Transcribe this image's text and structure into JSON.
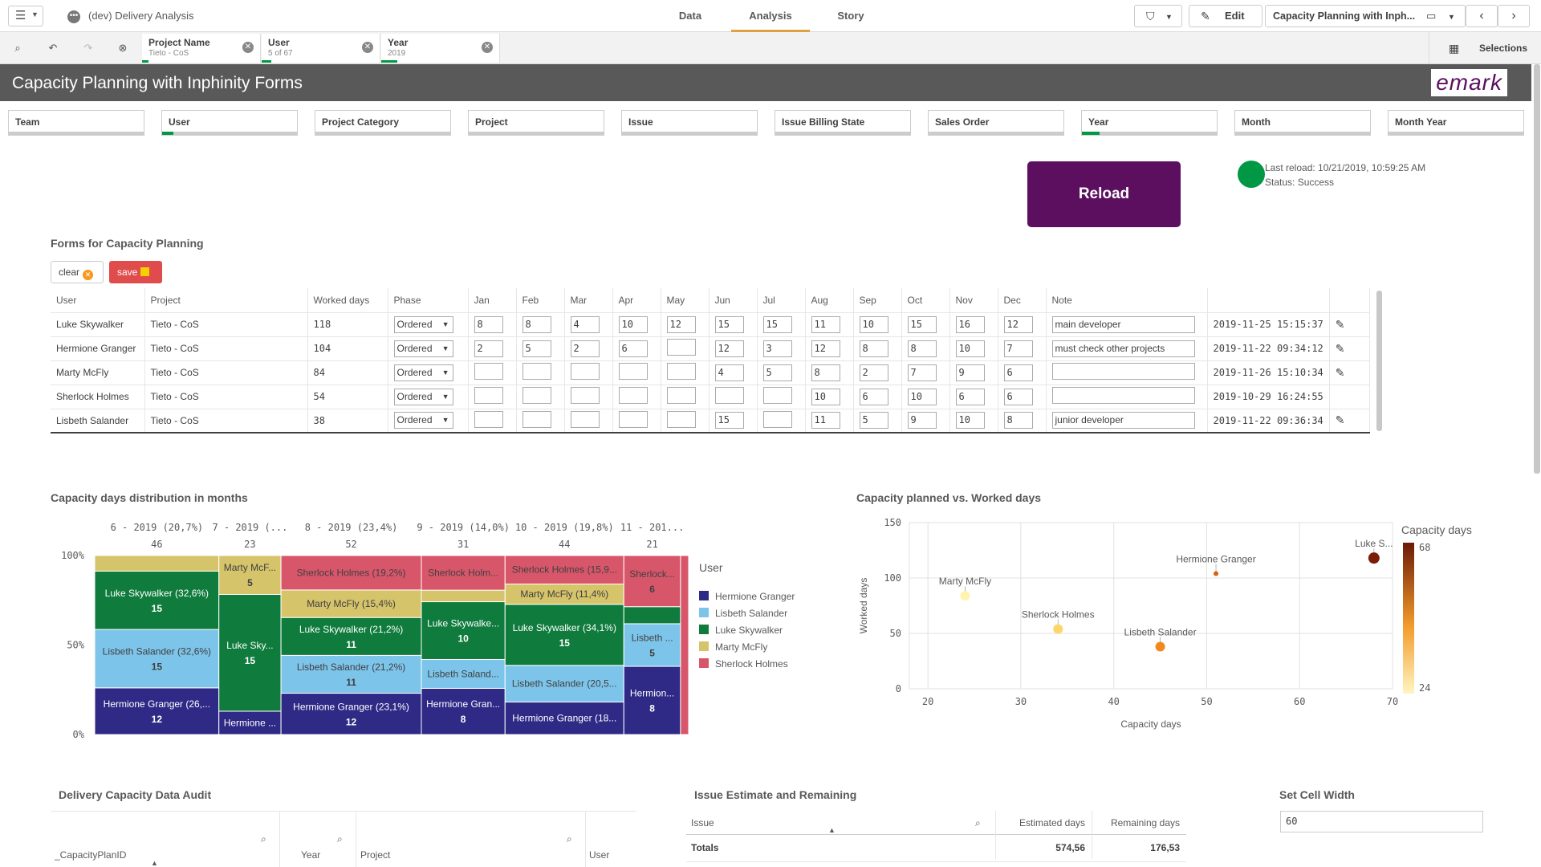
{
  "app": {
    "title": "(dev) Delivery Analysis",
    "icon": "app-icon"
  },
  "nav": {
    "tabs": [
      "Data",
      "Analysis",
      "Story"
    ],
    "active": "Analysis"
  },
  "toolbar": {
    "edit_label": "Edit",
    "sheet_name": "Capacity Planning with Inph...",
    "selections_label": "Selections"
  },
  "selections": [
    {
      "title": "Project Name",
      "value": "Tieto - CoS"
    },
    {
      "title": "User",
      "value": "5 of 67"
    },
    {
      "title": "Year",
      "value": "2019"
    }
  ],
  "sheet": {
    "title": "Capacity Planning with Inphinity Forms",
    "logo": "emark"
  },
  "filters": [
    "Team",
    "User",
    "Project Category",
    "Project",
    "Issue",
    "Issue Billing State",
    "Sales Order",
    "Year",
    "Month",
    "Month Year"
  ],
  "reload": {
    "label": "Reload",
    "last_reload": "Last reload: 10/21/2019, 10:59:25 AM",
    "status": "Status: Success",
    "status_color": "#009845"
  },
  "forms": {
    "title": "Forms for Capacity Planning",
    "clear_label": "clear",
    "save_label": "save",
    "columns": [
      "User",
      "Project",
      "Worked days",
      "Phase",
      "Jan",
      "Feb",
      "Mar",
      "Apr",
      "May",
      "Jun",
      "Jul",
      "Aug",
      "Sep",
      "Oct",
      "Nov",
      "Dec",
      "Note",
      ""
    ],
    "rows": [
      {
        "user": "Luke Skywalker",
        "project": "Tieto - CoS",
        "worked": "118",
        "phase": "Ordered",
        "months": [
          "8",
          "8",
          "4",
          "10",
          "12",
          "15",
          "15",
          "11",
          "10",
          "15",
          "16",
          "12"
        ],
        "note": "main developer",
        "ts": "2019-11-25 15:15:37",
        "edit": true
      },
      {
        "user": "Hermione Granger",
        "project": "Tieto - CoS",
        "worked": "104",
        "phase": "Ordered",
        "months": [
          "2",
          "5",
          "2",
          "6",
          "",
          "12",
          "3",
          "12",
          "8",
          "8",
          "10",
          "7"
        ],
        "note": "must check other projects",
        "ts": "2019-11-22 09:34:12",
        "edit": true
      },
      {
        "user": "Marty McFly",
        "project": "Tieto - CoS",
        "worked": "84",
        "phase": "Ordered",
        "months": [
          "",
          "",
          "",
          "",
          "",
          "4",
          "5",
          "8",
          "2",
          "7",
          "9",
          "6"
        ],
        "note": "",
        "ts": "2019-11-26 15:10:34",
        "edit": true
      },
      {
        "user": "Sherlock Holmes",
        "project": "Tieto - CoS",
        "worked": "54",
        "phase": "Ordered",
        "months": [
          "",
          "",
          "",
          "",
          "",
          "",
          "",
          "10",
          "6",
          "10",
          "6",
          "6"
        ],
        "note": "",
        "ts": "2019-10-29 16:24:55",
        "edit": false
      },
      {
        "user": "Lisbeth Salander",
        "project": "Tieto - CoS",
        "worked": "38",
        "phase": "Ordered",
        "months": [
          "",
          "",
          "",
          "",
          "",
          "15",
          "",
          "11",
          "5",
          "9",
          "10",
          "8"
        ],
        "note": "junior developer",
        "ts": "2019-11-22 09:36:34",
        "edit": true
      }
    ]
  },
  "chart_data": [
    {
      "type": "bar",
      "title": "Capacity days distribution in months",
      "legend_title": "User",
      "legend_placement": "right",
      "y_ticks": [
        "100%",
        "50%",
        "0%"
      ],
      "series_colors": {
        "Hermione Granger": "#2e2a86",
        "Lisbeth Salander": "#7dc4ea",
        "Luke Skywalker": "#0f7b3c",
        "Marty McFly": "#d6c46b",
        "Sherlock Holmes": "#d8566a"
      },
      "legend": [
        "Hermione Granger",
        "Lisbeth Salander",
        "Luke Skywalker",
        "Marty McFly",
        "Sherlock Holmes"
      ],
      "columns": [
        {
          "label": "6 - 2019 (20,7%)",
          "total": "46",
          "total_value": 46,
          "segments": [
            {
              "name": "Hermione Granger",
              "label": "Hermione Granger (26,...",
              "value": "12",
              "v": 12
            },
            {
              "name": "Lisbeth Salander",
              "label": "Lisbeth Salander (32,6%)",
              "value": "15",
              "v": 15
            },
            {
              "name": "Luke Skywalker",
              "label": "Luke Skywalker (32,6%)",
              "value": "15",
              "v": 15
            },
            {
              "name": "Marty McFly",
              "label": "",
              "value": "",
              "v": 4
            }
          ]
        },
        {
          "label": "7 - 2019 (...",
          "total": "23",
          "total_value": 23,
          "segments": [
            {
              "name": "Hermione Granger",
              "label": "Hermione ...",
              "value": "",
              "v": 3
            },
            {
              "name": "Luke Skywalker",
              "label": "Luke Sky...",
              "value": "15",
              "v": 15
            },
            {
              "name": "Marty McFly",
              "label": "Marty McF...",
              "value": "5",
              "v": 5
            }
          ]
        },
        {
          "label": "8 - 2019 (23,4%)",
          "total": "52",
          "total_value": 52,
          "segments": [
            {
              "name": "Hermione Granger",
              "label": "Hermione Granger (23,1%)",
              "value": "12",
              "v": 12
            },
            {
              "name": "Lisbeth Salander",
              "label": "Lisbeth Salander (21,2%)",
              "value": "11",
              "v": 11
            },
            {
              "name": "Luke Skywalker",
              "label": "Luke Skywalker (21,2%)",
              "value": "11",
              "v": 11
            },
            {
              "name": "Marty McFly",
              "label": "Marty McFly (15,4%)",
              "value": "",
              "v": 8
            },
            {
              "name": "Sherlock Holmes",
              "label": "Sherlock Holmes (19,2%)",
              "value": "",
              "v": 10
            }
          ]
        },
        {
          "label": "9 - 2019 (14,0%)",
          "total": "31",
          "total_value": 31,
          "segments": [
            {
              "name": "Hermione Granger",
              "label": "Hermione Gran...",
              "value": "8",
              "v": 8
            },
            {
              "name": "Lisbeth Salander",
              "label": "Lisbeth Saland...",
              "value": "",
              "v": 5
            },
            {
              "name": "Luke Skywalker",
              "label": "Luke Skywalke...",
              "value": "10",
              "v": 10
            },
            {
              "name": "Marty McFly",
              "label": "",
              "value": "",
              "v": 2
            },
            {
              "name": "Sherlock Holmes",
              "label": "Sherlock Holm...",
              "value": "",
              "v": 6
            }
          ]
        },
        {
          "label": "10 - 2019 (19,8%)",
          "total": "44",
          "total_value": 44,
          "segments": [
            {
              "name": "Hermione Granger",
              "label": "Hermione Granger (18...",
              "value": "",
              "v": 8
            },
            {
              "name": "Lisbeth Salander",
              "label": "Lisbeth Salander (20,5...",
              "value": "",
              "v": 9
            },
            {
              "name": "Luke Skywalker",
              "label": "Luke Skywalker (34,1%)",
              "value": "15",
              "v": 15
            },
            {
              "name": "Marty McFly",
              "label": "Marty McFly (11,4%)",
              "value": "",
              "v": 5
            },
            {
              "name": "Sherlock Holmes",
              "label": "Sherlock Holmes (15,9...",
              "value": "",
              "v": 7
            }
          ]
        },
        {
          "label": "11 - 201...",
          "total": "21",
          "total_value": 21,
          "segments": [
            {
              "name": "Hermione Granger",
              "label": "Hermion...",
              "value": "8",
              "v": 8
            },
            {
              "name": "Lisbeth Salander",
              "label": "Lisbeth ...",
              "value": "5",
              "v": 5
            },
            {
              "name": "Luke Skywalker",
              "label": "",
              "value": "",
              "v": 2
            },
            {
              "name": "Sherlock Holmes",
              "label": "Sherlock...",
              "value": "6",
              "v": 6
            }
          ]
        },
        {
          "label": "",
          "total": "",
          "total_value": 3,
          "segments": [
            {
              "name": "Sherlock Holmes",
              "label": "",
              "value": "",
              "v": 3
            }
          ]
        }
      ]
    },
    {
      "type": "scatter",
      "title": "Capacity planned vs. Worked days",
      "xlabel": "Capacity days",
      "ylabel": "Worked days",
      "xlim": [
        18,
        70
      ],
      "ylim": [
        0,
        150
      ],
      "x_ticks": [
        20,
        30,
        40,
        50,
        60,
        70
      ],
      "y_ticks": [
        0,
        50,
        100,
        150
      ],
      "grid": true,
      "color_legend": {
        "title": "Capacity days",
        "max": "68",
        "min": "24",
        "max_color": "#6b1a07",
        "min_color": "#fff5c0"
      },
      "points": [
        {
          "name": "Luke S...",
          "x": 68,
          "y": 118,
          "color": "#7a1e06",
          "size": 7
        },
        {
          "name": "Hermione Granger",
          "x": 51,
          "y": 104,
          "color": "#d9600f",
          "size": 3
        },
        {
          "name": "Marty McFly",
          "x": 24,
          "y": 84,
          "color": "#fff3b0",
          "size": 6
        },
        {
          "name": "Sherlock Holmes",
          "x": 34,
          "y": 54,
          "color": "#fdd66b",
          "size": 6
        },
        {
          "name": "Lisbeth Salander",
          "x": 45,
          "y": 38,
          "color": "#f08a1d",
          "size": 6
        }
      ]
    }
  ],
  "bottom": {
    "audit_title": "Delivery Capacity Data Audit",
    "audit_cols": [
      "_CapacityPlanID",
      "Year",
      "Project",
      "User"
    ],
    "issue_title": "Issue Estimate and Remaining",
    "issue_cols": [
      "Issue",
      "Estimated days",
      "Remaining days"
    ],
    "totals_label": "Totals",
    "est_total": "574,56",
    "rem_total": "176,53",
    "width_title": "Set Cell Width",
    "width_value": "60"
  }
}
